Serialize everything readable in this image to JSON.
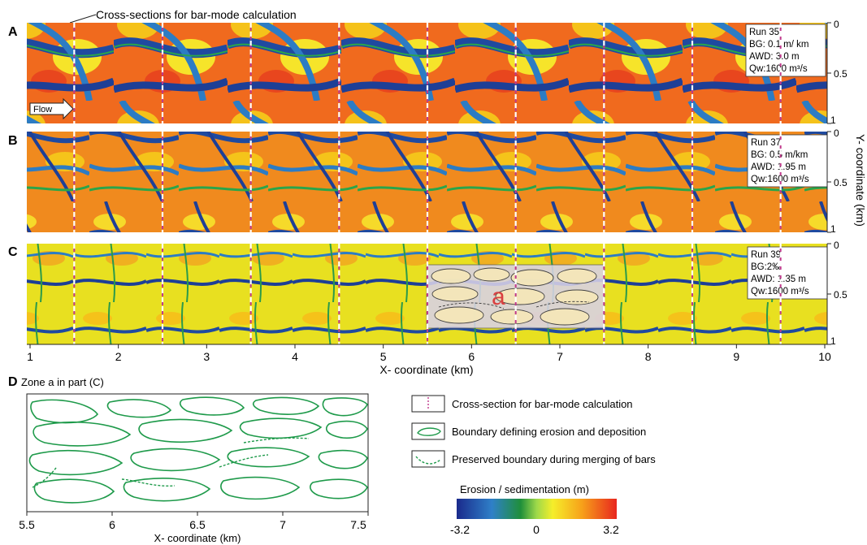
{
  "top_annotation": "Cross-sections for bar-mode calculation",
  "flow_label": "Flow",
  "panels": [
    {
      "letter": "A",
      "run": "Run 35",
      "bg": "BG: 0.1 m/ km",
      "awd": "AWD: 3.0 m",
      "qw": "Qw:1600 m³/s"
    },
    {
      "letter": "B",
      "run": "Run 37",
      "bg": "BG: 0.5 m/km",
      "awd": "AWD: 1.95 m",
      "qw": "Qw:1600 m³/s"
    },
    {
      "letter": "C",
      "run": "Run 39",
      "bg": "BG:2‰",
      "awd": "AWD: 1.35 m",
      "qw": "Qw:1600 m³/s"
    }
  ],
  "zone_label": "a",
  "x_ticks": [
    "1",
    "2",
    "3",
    "4",
    "5",
    "6",
    "7",
    "8",
    "9",
    "10"
  ],
  "x_axis_title": "X- coordinate (km)",
  "y_ticks": [
    "0",
    "0.5",
    "1"
  ],
  "y_axis_title": "Y- coordinate (km)",
  "panel_d": {
    "letter": "D",
    "title": "Zone a in part (C)",
    "x_ticks": [
      "5.5",
      "6",
      "6.5",
      "7",
      "7.5"
    ],
    "x_axis_title": "X- coordinate (km)"
  },
  "legend": {
    "items": [
      "Cross-section for bar-mode calculation",
      "Boundary defining erosion and deposition",
      "Preserved boundary during merging of bars"
    ],
    "colorbar_title": "Erosion / sedimentation (m)",
    "colorbar_ticks": [
      "-3.2",
      "0",
      "3.2"
    ]
  },
  "colors": {
    "channel_deep": "#1a3a8c",
    "channel_mid": "#2f7fc0",
    "green": "#2aa54a",
    "yellow": "#f2e600",
    "orange": "#f5a100",
    "red": "#e8321e",
    "cross_section_pink": "#c0398c",
    "bar_boundary_green": "#1e9a4a"
  }
}
